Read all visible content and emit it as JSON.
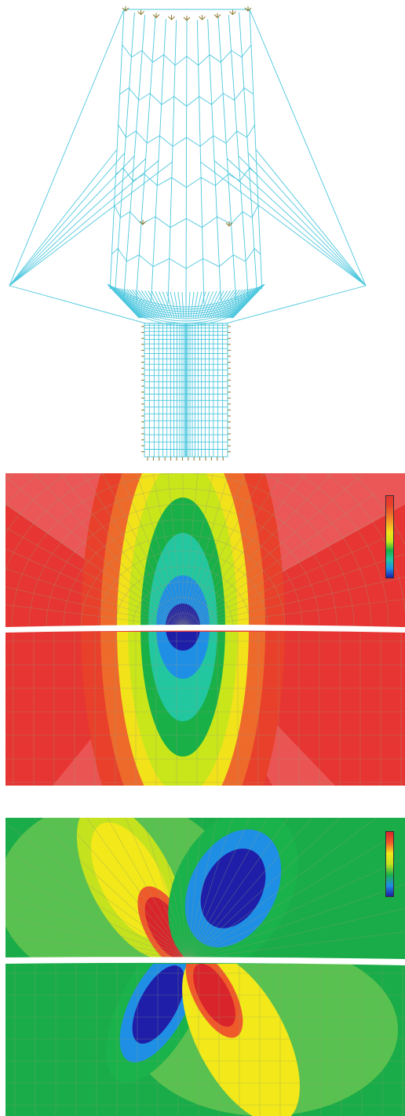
{
  "figure": {
    "mesh_panel": {
      "mesh_color": "#4cc7de",
      "support_color": "#8c7a2f",
      "support_symbol": "pinned-support-symbol"
    },
    "contour_a": {
      "colormap": [
        "#1e1ea8",
        "#1f8fe6",
        "#22c7a0",
        "#19b047",
        "#c9e61a",
        "#f2e21a",
        "#f7a623",
        "#ee6a2b",
        "#e8402a",
        "#e63532"
      ],
      "legend_title": "",
      "background_color": "#e63532"
    },
    "contour_b": {
      "caption": "",
      "colormap": [
        "#1e1ea8",
        "#1f8fe6",
        "#1ab24a",
        "#c4e21e",
        "#f2e81a",
        "#ef5a2b",
        "#d9242b"
      ],
      "background_color": "#1aac48"
    }
  }
}
